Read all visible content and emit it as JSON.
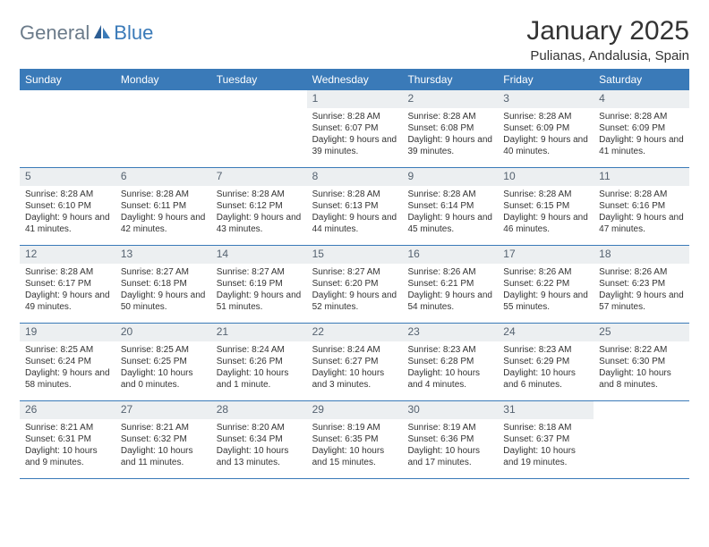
{
  "logo": {
    "text1": "General",
    "text2": "Blue"
  },
  "title": "January 2025",
  "location": "Pulianas, Andalusia, Spain",
  "colors": {
    "header_bg": "#3a7ab8",
    "header_text": "#ffffff",
    "daynum_bg": "#eceff1",
    "daynum_text": "#556270",
    "body_text": "#333333",
    "logo_gray": "#6b7b8a",
    "logo_blue": "#3a7ab8",
    "row_border": "#3a7ab8",
    "page_bg": "#ffffff"
  },
  "typography": {
    "title_fontsize": 30,
    "location_fontsize": 15,
    "weekday_fontsize": 12,
    "daynum_fontsize": 12,
    "body_fontsize": 10,
    "logo_fontsize": 22
  },
  "layout": {
    "columns": 7,
    "rows": 5,
    "cell_min_height": 86
  },
  "weekdays": [
    "Sunday",
    "Monday",
    "Tuesday",
    "Wednesday",
    "Thursday",
    "Friday",
    "Saturday"
  ],
  "weeks": [
    [
      {
        "empty": true
      },
      {
        "empty": true
      },
      {
        "empty": true
      },
      {
        "day": "1",
        "sunrise": "Sunrise: 8:28 AM",
        "sunset": "Sunset: 6:07 PM",
        "daylight": "Daylight: 9 hours and 39 minutes."
      },
      {
        "day": "2",
        "sunrise": "Sunrise: 8:28 AM",
        "sunset": "Sunset: 6:08 PM",
        "daylight": "Daylight: 9 hours and 39 minutes."
      },
      {
        "day": "3",
        "sunrise": "Sunrise: 8:28 AM",
        "sunset": "Sunset: 6:09 PM",
        "daylight": "Daylight: 9 hours and 40 minutes."
      },
      {
        "day": "4",
        "sunrise": "Sunrise: 8:28 AM",
        "sunset": "Sunset: 6:09 PM",
        "daylight": "Daylight: 9 hours and 41 minutes."
      }
    ],
    [
      {
        "day": "5",
        "sunrise": "Sunrise: 8:28 AM",
        "sunset": "Sunset: 6:10 PM",
        "daylight": "Daylight: 9 hours and 41 minutes."
      },
      {
        "day": "6",
        "sunrise": "Sunrise: 8:28 AM",
        "sunset": "Sunset: 6:11 PM",
        "daylight": "Daylight: 9 hours and 42 minutes."
      },
      {
        "day": "7",
        "sunrise": "Sunrise: 8:28 AM",
        "sunset": "Sunset: 6:12 PM",
        "daylight": "Daylight: 9 hours and 43 minutes."
      },
      {
        "day": "8",
        "sunrise": "Sunrise: 8:28 AM",
        "sunset": "Sunset: 6:13 PM",
        "daylight": "Daylight: 9 hours and 44 minutes."
      },
      {
        "day": "9",
        "sunrise": "Sunrise: 8:28 AM",
        "sunset": "Sunset: 6:14 PM",
        "daylight": "Daylight: 9 hours and 45 minutes."
      },
      {
        "day": "10",
        "sunrise": "Sunrise: 8:28 AM",
        "sunset": "Sunset: 6:15 PM",
        "daylight": "Daylight: 9 hours and 46 minutes."
      },
      {
        "day": "11",
        "sunrise": "Sunrise: 8:28 AM",
        "sunset": "Sunset: 6:16 PM",
        "daylight": "Daylight: 9 hours and 47 minutes."
      }
    ],
    [
      {
        "day": "12",
        "sunrise": "Sunrise: 8:28 AM",
        "sunset": "Sunset: 6:17 PM",
        "daylight": "Daylight: 9 hours and 49 minutes."
      },
      {
        "day": "13",
        "sunrise": "Sunrise: 8:27 AM",
        "sunset": "Sunset: 6:18 PM",
        "daylight": "Daylight: 9 hours and 50 minutes."
      },
      {
        "day": "14",
        "sunrise": "Sunrise: 8:27 AM",
        "sunset": "Sunset: 6:19 PM",
        "daylight": "Daylight: 9 hours and 51 minutes."
      },
      {
        "day": "15",
        "sunrise": "Sunrise: 8:27 AM",
        "sunset": "Sunset: 6:20 PM",
        "daylight": "Daylight: 9 hours and 52 minutes."
      },
      {
        "day": "16",
        "sunrise": "Sunrise: 8:26 AM",
        "sunset": "Sunset: 6:21 PM",
        "daylight": "Daylight: 9 hours and 54 minutes."
      },
      {
        "day": "17",
        "sunrise": "Sunrise: 8:26 AM",
        "sunset": "Sunset: 6:22 PM",
        "daylight": "Daylight: 9 hours and 55 minutes."
      },
      {
        "day": "18",
        "sunrise": "Sunrise: 8:26 AM",
        "sunset": "Sunset: 6:23 PM",
        "daylight": "Daylight: 9 hours and 57 minutes."
      }
    ],
    [
      {
        "day": "19",
        "sunrise": "Sunrise: 8:25 AM",
        "sunset": "Sunset: 6:24 PM",
        "daylight": "Daylight: 9 hours and 58 minutes."
      },
      {
        "day": "20",
        "sunrise": "Sunrise: 8:25 AM",
        "sunset": "Sunset: 6:25 PM",
        "daylight": "Daylight: 10 hours and 0 minutes."
      },
      {
        "day": "21",
        "sunrise": "Sunrise: 8:24 AM",
        "sunset": "Sunset: 6:26 PM",
        "daylight": "Daylight: 10 hours and 1 minute."
      },
      {
        "day": "22",
        "sunrise": "Sunrise: 8:24 AM",
        "sunset": "Sunset: 6:27 PM",
        "daylight": "Daylight: 10 hours and 3 minutes."
      },
      {
        "day": "23",
        "sunrise": "Sunrise: 8:23 AM",
        "sunset": "Sunset: 6:28 PM",
        "daylight": "Daylight: 10 hours and 4 minutes."
      },
      {
        "day": "24",
        "sunrise": "Sunrise: 8:23 AM",
        "sunset": "Sunset: 6:29 PM",
        "daylight": "Daylight: 10 hours and 6 minutes."
      },
      {
        "day": "25",
        "sunrise": "Sunrise: 8:22 AM",
        "sunset": "Sunset: 6:30 PM",
        "daylight": "Daylight: 10 hours and 8 minutes."
      }
    ],
    [
      {
        "day": "26",
        "sunrise": "Sunrise: 8:21 AM",
        "sunset": "Sunset: 6:31 PM",
        "daylight": "Daylight: 10 hours and 9 minutes."
      },
      {
        "day": "27",
        "sunrise": "Sunrise: 8:21 AM",
        "sunset": "Sunset: 6:32 PM",
        "daylight": "Daylight: 10 hours and 11 minutes."
      },
      {
        "day": "28",
        "sunrise": "Sunrise: 8:20 AM",
        "sunset": "Sunset: 6:34 PM",
        "daylight": "Daylight: 10 hours and 13 minutes."
      },
      {
        "day": "29",
        "sunrise": "Sunrise: 8:19 AM",
        "sunset": "Sunset: 6:35 PM",
        "daylight": "Daylight: 10 hours and 15 minutes."
      },
      {
        "day": "30",
        "sunrise": "Sunrise: 8:19 AM",
        "sunset": "Sunset: 6:36 PM",
        "daylight": "Daylight: 10 hours and 17 minutes."
      },
      {
        "day": "31",
        "sunrise": "Sunrise: 8:18 AM",
        "sunset": "Sunset: 6:37 PM",
        "daylight": "Daylight: 10 hours and 19 minutes."
      },
      {
        "empty": true
      }
    ]
  ]
}
